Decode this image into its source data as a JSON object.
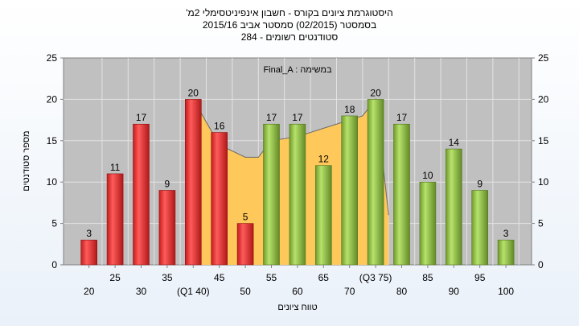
{
  "chart_data": {
    "type": "bar",
    "title_lines": [
      "היסטוגרמת ציונים בקורס - חשבון אינפיניטסימלי 2מ'",
      "בסמסטר  (02/2015)  סמסטר אביב 2015/16",
      "סטודנטים רשומים - 284"
    ],
    "legend": "Final_A : במשימה",
    "xlabel": "טווח ציונים",
    "ylabel": "מספר סטודנטים",
    "ylim": [
      0,
      25
    ],
    "yticks": [
      0,
      5,
      10,
      15,
      20,
      25
    ],
    "grid": true,
    "categories": [
      20,
      25,
      30,
      35,
      40,
      45,
      50,
      55,
      60,
      65,
      70,
      75,
      80,
      85,
      90,
      95,
      100
    ],
    "category_labels": [
      "20",
      "25",
      "30",
      "35",
      "(Q1 40)",
      "45",
      "50",
      "55",
      "60",
      "65",
      "70",
      "(Q3 75)",
      "80",
      "85",
      "90",
      "95",
      "100"
    ],
    "values": [
      3,
      11,
      17,
      9,
      20,
      16,
      5,
      17,
      17,
      12,
      18,
      20,
      17,
      10,
      14,
      9,
      3
    ],
    "series_colors": [
      "red",
      "red",
      "red",
      "red",
      "red",
      "red",
      "red",
      "green",
      "green",
      "green",
      "green",
      "green",
      "green",
      "green",
      "green",
      "green",
      "green"
    ],
    "band": {
      "x": [
        40,
        45,
        50,
        52.5,
        55,
        60,
        65,
        70,
        72.5,
        75,
        77.5
      ],
      "y": [
        20,
        14.5,
        13,
        13,
        15,
        15.5,
        16.5,
        17.5,
        18,
        20,
        6
      ]
    },
    "colors": {
      "red_light": "#ff5b5b",
      "red_dark": "#c21d1d",
      "green_light": "#b6e26c",
      "green_dark": "#6f9a2c",
      "band": "#ffc85a",
      "plot_bg": "#c0c0c0",
      "grid": "#e3e3e3"
    }
  }
}
